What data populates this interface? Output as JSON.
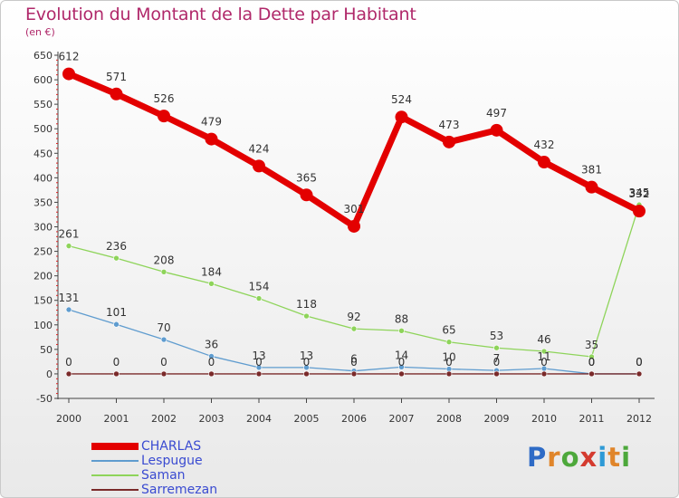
{
  "title": "Evolution du Montant de la Dette par Habitant",
  "subtitle": "(en €)",
  "logo": {
    "letters": [
      "P",
      "r",
      "o",
      "x",
      "i",
      "t",
      "i"
    ],
    "colors": [
      "#2e6bc6",
      "#e0852a",
      "#4da83b",
      "#d43b2f",
      "#2e9ad6",
      "#e0852a",
      "#4da83b"
    ]
  },
  "chart_data": {
    "type": "line",
    "title": "Evolution du Montant de la Dette par Habitant",
    "subtitle": "(en €)",
    "x": [
      "2000",
      "2001",
      "2002",
      "2003",
      "2004",
      "2005",
      "2006",
      "2007",
      "2008",
      "2009",
      "2010",
      "2011",
      "2012"
    ],
    "ylim": [
      -50,
      650
    ],
    "yticks": [
      -50,
      0,
      50,
      100,
      150,
      200,
      250,
      300,
      350,
      400,
      450,
      500,
      550,
      600,
      650
    ],
    "grid": false,
    "legend_position": "bottom-left",
    "series": [
      {
        "name": "CHARLAS",
        "color": "#e30000",
        "values": [
          612,
          571,
          526,
          479,
          424,
          365,
          301,
          524,
          473,
          497,
          432,
          381,
          332
        ]
      },
      {
        "name": "Lespugue",
        "color": "#5f9ccf",
        "values": [
          131,
          101,
          70,
          36,
          13,
          13,
          6,
          14,
          10,
          7,
          11,
          0,
          0
        ]
      },
      {
        "name": "Saman",
        "color": "#8ed45a",
        "values": [
          261,
          236,
          208,
          184,
          154,
          118,
          92,
          88,
          65,
          53,
          46,
          35,
          345
        ]
      },
      {
        "name": "Sarremezan",
        "color": "#7a2a2a",
        "values": [
          0,
          0,
          0,
          0,
          0,
          0,
          0,
          0,
          0,
          0,
          0,
          0,
          0
        ]
      }
    ],
    "data_labels": {
      "CHARLAS": [
        "612",
        "571",
        "526",
        "479",
        "424",
        "365",
        "301",
        "524",
        "473",
        "497",
        "432",
        "381",
        "332"
      ],
      "Lespugue": [
        "131",
        "101",
        "70",
        "36",
        "13",
        "13",
        "6",
        "14",
        "10",
        "7",
        "11",
        "0",
        "0"
      ],
      "Saman": [
        "261",
        "236",
        "208",
        "184",
        "154",
        "118",
        "92",
        "88",
        "65",
        "53",
        "46",
        "35",
        "345"
      ],
      "Sarremezan": [
        "0",
        "0",
        "0",
        "0",
        "0",
        "0",
        "0",
        "0",
        "0",
        "0",
        "0",
        "0",
        "0"
      ]
    }
  }
}
